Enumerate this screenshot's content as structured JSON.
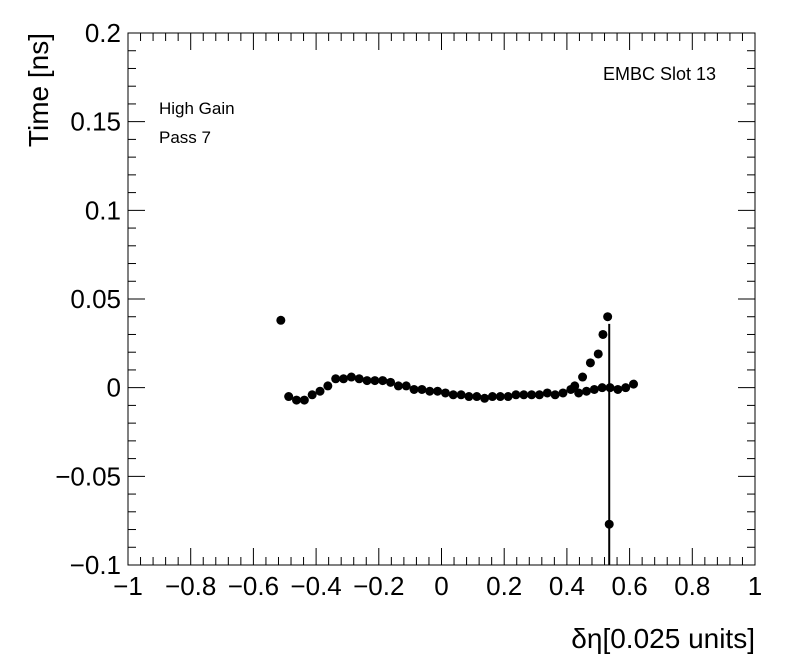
{
  "chart_data": {
    "type": "scatter",
    "title": "",
    "xlabel": "δη[0.025 units]",
    "ylabel": "Time [ns]",
    "xlim": [
      -1,
      1
    ],
    "ylim": [
      -0.1,
      0.2
    ],
    "grid": false,
    "x_ticks": [
      "−1",
      "−0.8",
      "−0.6",
      "−0.4",
      "−0.2",
      "0",
      "0.2",
      "0.4",
      "0.6",
      "0.8",
      "1"
    ],
    "y_ticks": [
      "−0.1",
      "−0.05",
      "0",
      "0.05",
      "0.1",
      "0.15",
      "0.2"
    ],
    "annotations": {
      "top_right": "EMBC Slot 13",
      "gain": "High Gain",
      "pass": "Pass 7"
    },
    "series": [
      {
        "marker": "circle",
        "color": "#000000",
        "points": [
          {
            "x": -0.5125,
            "y": 0.038
          },
          {
            "x": -0.4875,
            "y": -0.005
          },
          {
            "x": -0.4625,
            "y": -0.007
          },
          {
            "x": -0.4375,
            "y": -0.007
          },
          {
            "x": -0.4125,
            "y": -0.004
          },
          {
            "x": -0.3875,
            "y": -0.002
          },
          {
            "x": -0.3625,
            "y": 0.001
          },
          {
            "x": -0.3375,
            "y": 0.005
          },
          {
            "x": -0.3125,
            "y": 0.005
          },
          {
            "x": -0.2875,
            "y": 0.006
          },
          {
            "x": -0.2625,
            "y": 0.005
          },
          {
            "x": -0.2375,
            "y": 0.004
          },
          {
            "x": -0.2125,
            "y": 0.004
          },
          {
            "x": -0.1875,
            "y": 0.004
          },
          {
            "x": -0.1625,
            "y": 0.003
          },
          {
            "x": -0.1375,
            "y": 0.001
          },
          {
            "x": -0.1125,
            "y": 0.001
          },
          {
            "x": -0.0875,
            "y": -0.001
          },
          {
            "x": -0.0625,
            "y": -0.001
          },
          {
            "x": -0.0375,
            "y": -0.002
          },
          {
            "x": -0.0125,
            "y": -0.002
          },
          {
            "x": 0.0125,
            "y": -0.003
          },
          {
            "x": 0.0375,
            "y": -0.004
          },
          {
            "x": 0.0625,
            "y": -0.004
          },
          {
            "x": 0.0875,
            "y": -0.005
          },
          {
            "x": 0.1125,
            "y": -0.005
          },
          {
            "x": 0.1375,
            "y": -0.006
          },
          {
            "x": 0.1625,
            "y": -0.005
          },
          {
            "x": 0.1875,
            "y": -0.005
          },
          {
            "x": 0.2125,
            "y": -0.005
          },
          {
            "x": 0.2375,
            "y": -0.004
          },
          {
            "x": 0.2625,
            "y": -0.004
          },
          {
            "x": 0.2875,
            "y": -0.004
          },
          {
            "x": 0.3125,
            "y": -0.004
          },
          {
            "x": 0.3375,
            "y": -0.003
          },
          {
            "x": 0.3625,
            "y": -0.004
          },
          {
            "x": 0.3875,
            "y": -0.003
          },
          {
            "x": 0.4125,
            "y": -0.001
          },
          {
            "x": 0.4375,
            "y": -0.003
          },
          {
            "x": 0.4625,
            "y": -0.002
          },
          {
            "x": 0.4875,
            "y": -0.001
          },
          {
            "x": 0.5125,
            "y": 0.0
          },
          {
            "x": 0.5375,
            "y": 0.0
          },
          {
            "x": 0.5625,
            "y": -0.001
          },
          {
            "x": 0.5875,
            "y": 0.0
          },
          {
            "x": 0.6125,
            "y": 0.002
          }
        ]
      }
    ]
  }
}
